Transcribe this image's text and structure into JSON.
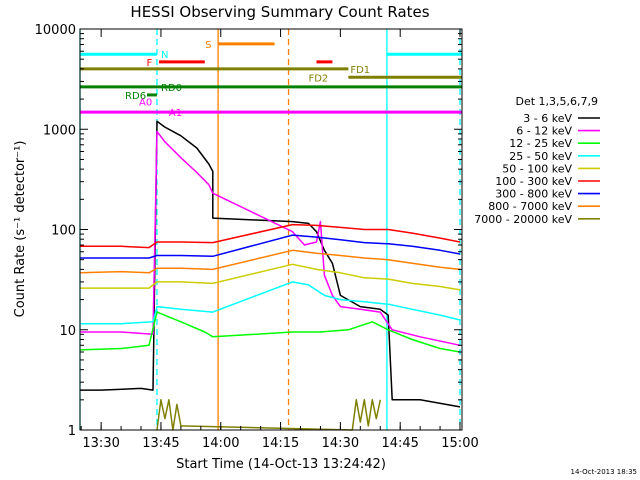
{
  "chart_data": {
    "type": "line",
    "title": "HESSI Observing Summary Count Rates",
    "xlabel": "Start Time (14-Oct-13 13:24:42)",
    "ylabel": "Count Rate (s⁻¹ detector⁻¹)",
    "y_scale": "log",
    "ylim": [
      1,
      10000
    ],
    "xlim": [
      "13:24:42",
      "15:00:30"
    ],
    "x_ticks": [
      "13:30",
      "13:45",
      "14:00",
      "14:15",
      "14:30",
      "14:45",
      "15:00"
    ],
    "y_ticks": [
      "1",
      "10",
      "100",
      "1000",
      "10000"
    ],
    "legend_title": "Det 1,3,5,6,7,9",
    "legend_position": "right",
    "timestamp": "14-Oct-2013 18:35",
    "series": [
      {
        "name": "3 - 6 keV",
        "color": "#000000",
        "points": [
          [
            "13:24:42",
            2.5
          ],
          [
            "13:30",
            2.5
          ],
          [
            "13:40",
            2.6
          ],
          [
            "13:43",
            2.5
          ],
          [
            "13:44",
            1200
          ],
          [
            "13:46",
            1050
          ],
          [
            "13:50",
            860
          ],
          [
            "13:54",
            650
          ],
          [
            "13:57",
            450
          ],
          [
            "13:58",
            380
          ],
          [
            "13:58",
            130
          ],
          [
            "14:18",
            120
          ],
          [
            "14:22",
            115
          ],
          [
            "14:24",
            95
          ],
          [
            "14:26",
            62
          ],
          [
            "14:28",
            46
          ],
          [
            "14:30",
            22
          ],
          [
            "14:35",
            17
          ],
          [
            "14:40",
            16
          ],
          [
            "14:42",
            14
          ],
          [
            "14:43",
            2.0
          ],
          [
            "14:50",
            2.0
          ],
          [
            "15:00",
            1.7
          ]
        ]
      },
      {
        "name": "6 - 12 keV",
        "color": "#ff00ff",
        "points": [
          [
            "13:24:42",
            9.5
          ],
          [
            "13:35",
            9.5
          ],
          [
            "13:43",
            9.0
          ],
          [
            "13:44",
            950
          ],
          [
            "13:46",
            750
          ],
          [
            "13:50",
            520
          ],
          [
            "13:54",
            370
          ],
          [
            "13:57",
            280
          ],
          [
            "13:58",
            230
          ],
          [
            "14:18",
            95
          ],
          [
            "14:21",
            70
          ],
          [
            "14:24",
            75
          ],
          [
            "14:25",
            120
          ],
          [
            "14:26",
            35
          ],
          [
            "14:28",
            22
          ],
          [
            "14:30",
            17
          ],
          [
            "14:35",
            16
          ],
          [
            "14:40",
            15
          ],
          [
            "14:43",
            10
          ],
          [
            "14:50",
            8.5
          ],
          [
            "15:00",
            7.0
          ]
        ]
      },
      {
        "name": "12 - 25 keV",
        "color": "#00ff00",
        "points": [
          [
            "13:24:42",
            6.3
          ],
          [
            "13:35",
            6.5
          ],
          [
            "13:42",
            7.0
          ],
          [
            "13:44",
            15
          ],
          [
            "13:50",
            12
          ],
          [
            "13:56",
            9.5
          ],
          [
            "13:58",
            8.5
          ],
          [
            "14:18",
            9.5
          ],
          [
            "14:25",
            9.5
          ],
          [
            "14:32",
            10
          ],
          [
            "14:38",
            12
          ],
          [
            "14:42",
            10
          ],
          [
            "14:48",
            8
          ],
          [
            "14:55",
            6.5
          ],
          [
            "15:00",
            6.0
          ]
        ]
      },
      {
        "name": "25 - 50 keV",
        "color": "#00ffff",
        "points": [
          [
            "13:24:42",
            11.5
          ],
          [
            "13:35",
            11.5
          ],
          [
            "13:43",
            12
          ],
          [
            "13:44",
            17
          ],
          [
            "13:50",
            16
          ],
          [
            "13:58",
            15
          ],
          [
            "14:18",
            30
          ],
          [
            "14:22",
            28
          ],
          [
            "14:26",
            22
          ],
          [
            "14:30",
            20
          ],
          [
            "14:36",
            19
          ],
          [
            "14:42",
            18
          ],
          [
            "14:48",
            16
          ],
          [
            "14:55",
            14
          ],
          [
            "15:00",
            12.5
          ]
        ]
      },
      {
        "name": "50 - 100 keV",
        "color": "#cccc00",
        "points": [
          [
            "13:24:42",
            26
          ],
          [
            "13:35",
            26
          ],
          [
            "13:42",
            26
          ],
          [
            "13:44",
            30
          ],
          [
            "13:50",
            30
          ],
          [
            "13:58",
            29
          ],
          [
            "14:18",
            45
          ],
          [
            "14:24",
            40
          ],
          [
            "14:30",
            37
          ],
          [
            "14:36",
            33
          ],
          [
            "14:42",
            32
          ],
          [
            "14:48",
            29
          ],
          [
            "14:55",
            27
          ],
          [
            "15:00",
            25
          ]
        ]
      },
      {
        "name": "100 - 300 keV",
        "color": "#ff0000",
        "points": [
          [
            "13:24:42",
            68
          ],
          [
            "13:35",
            68
          ],
          [
            "13:42",
            66
          ],
          [
            "13:44",
            75
          ],
          [
            "13:50",
            75
          ],
          [
            "13:58",
            74
          ],
          [
            "14:18",
            112
          ],
          [
            "14:24",
            110
          ],
          [
            "14:30",
            105
          ],
          [
            "14:36",
            100
          ],
          [
            "14:42",
            100
          ],
          [
            "14:48",
            92
          ],
          [
            "14:55",
            82
          ],
          [
            "15:00",
            75
          ]
        ]
      },
      {
        "name": "300 - 800 keV",
        "color": "#0000ff",
        "points": [
          [
            "13:24:42",
            52
          ],
          [
            "13:35",
            52
          ],
          [
            "13:42",
            52
          ],
          [
            "13:44",
            55
          ],
          [
            "13:50",
            55
          ],
          [
            "13:58",
            54
          ],
          [
            "14:18",
            88
          ],
          [
            "14:24",
            84
          ],
          [
            "14:30",
            79
          ],
          [
            "14:36",
            74
          ],
          [
            "14:42",
            72
          ],
          [
            "14:48",
            68
          ],
          [
            "14:55",
            62
          ],
          [
            "15:00",
            57
          ]
        ]
      },
      {
        "name": "800 - 7000 keV",
        "color": "#ff8000",
        "points": [
          [
            "13:24:42",
            37
          ],
          [
            "13:35",
            38
          ],
          [
            "13:42",
            37
          ],
          [
            "13:44",
            41
          ],
          [
            "13:50",
            41
          ],
          [
            "13:58",
            40
          ],
          [
            "14:18",
            62
          ],
          [
            "14:24",
            58
          ],
          [
            "14:30",
            55
          ],
          [
            "14:36",
            52
          ],
          [
            "14:42",
            50
          ],
          [
            "14:48",
            46
          ],
          [
            "14:55",
            42
          ],
          [
            "15:00",
            40
          ]
        ]
      },
      {
        "name": "7000 - 20000 keV",
        "color": "#808000",
        "points": [
          [
            "13:44",
            1.0
          ],
          [
            "13:45",
            2.0
          ],
          [
            "13:46",
            1.3
          ],
          [
            "13:47",
            2.0
          ],
          [
            "13:48",
            1.0
          ],
          [
            "13:49",
            1.8
          ],
          [
            "13:50",
            1.1
          ],
          [
            "14:33",
            1.0
          ],
          [
            "14:34",
            2.0
          ],
          [
            "14:35",
            1.2
          ],
          [
            "14:36",
            2.0
          ],
          [
            "14:37",
            1.1
          ],
          [
            "14:38",
            2.0
          ],
          [
            "14:39",
            1.3
          ],
          [
            "14:40",
            2.0
          ]
        ]
      }
    ],
    "markers": {
      "vertical_lines": [
        {
          "time": "13:24:42",
          "color": "#00ffff",
          "style": "solid"
        },
        {
          "time": "13:44:00",
          "color": "#00ffff",
          "style": "dashed"
        },
        {
          "time": "13:59:20",
          "color": "#ff8000",
          "style": "solid"
        },
        {
          "time": "14:17:00",
          "color": "#ff8000",
          "style": "dashed"
        },
        {
          "time": "14:41:40",
          "color": "#00ffff",
          "style": "solid"
        },
        {
          "time": "15:00:00",
          "color": "#00ffff",
          "style": "dashed"
        }
      ],
      "flag_bars": [
        {
          "label": "N",
          "color": "#00ffff",
          "segments": [
            [
              "13:24:42",
              "13:44:00"
            ],
            [
              "14:41:40",
              "15:00:30"
            ]
          ],
          "level": 5600,
          "label_time": "13:45:00",
          "label_side": "right"
        },
        {
          "label": "S",
          "color": "#ff8000",
          "segments": [
            [
              "13:59:20",
              "14:13:30"
            ]
          ],
          "level": 7100,
          "label_time": "13:57:40",
          "label_side": "left"
        },
        {
          "label": "F",
          "color": "#ff0000",
          "segments": [
            [
              "13:44:30",
              "13:56:00"
            ],
            [
              "14:24:00",
              "14:28:00"
            ]
          ],
          "level": 4700,
          "label_time": "13:42:50",
          "label_side": "left"
        },
        {
          "label": "FD1",
          "color": "#808000",
          "segments": [
            [
              "13:24:42",
              "14:32:00"
            ]
          ],
          "level": 4000,
          "label_time": "14:32:30",
          "label_side": "right"
        },
        {
          "label": "FD2",
          "color": "#808000",
          "segments": [
            [
              "14:32:00",
              "15:00:30"
            ]
          ],
          "level": 3300,
          "label_time": "14:22:00",
          "label_side": "right"
        },
        {
          "label": "RD0",
          "color": "#008000",
          "segments": [
            [
              "13:24:42",
              "15:00:30"
            ]
          ],
          "level": 2650,
          "label_time": "13:45:00",
          "label_side": "right"
        },
        {
          "label": "RD6",
          "color": "#008000",
          "segments": [
            [
              "13:41:30",
              "13:44:00"
            ]
          ],
          "level": 2200,
          "label_time": "13:36:00",
          "label_side": "right"
        },
        {
          "label": "A0",
          "color": "#ff00ff",
          "segments": [],
          "level": 1900,
          "label_time": "13:39:30",
          "label_side": "right"
        },
        {
          "label": "A1",
          "color": "#ff00ff",
          "segments": [
            [
              "13:24:42",
              "15:00:30"
            ]
          ],
          "level": 1480,
          "label_time": "13:47:00",
          "label_side": "right"
        }
      ]
    }
  }
}
